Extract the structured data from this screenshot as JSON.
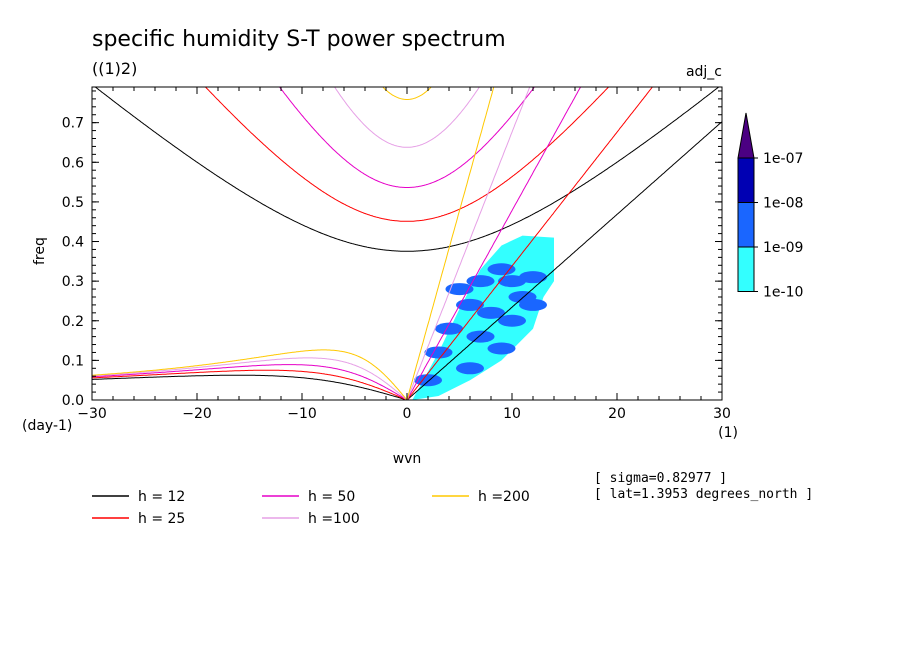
{
  "chart_data": {
    "type": "contour",
    "title": "specific humidity S-T power spectrum",
    "subtitle": "((1)2)",
    "top_right_label": "adj_c",
    "xlabel": "wvn",
    "ylabel": "freq",
    "x_unit": "(1)",
    "y_unit": "(day-1)",
    "xlim": [
      -30,
      30
    ],
    "ylim": [
      0,
      0.79
    ],
    "x_ticks": [
      -30,
      -20,
      -10,
      0,
      10,
      20,
      30
    ],
    "y_ticks": [
      0.0,
      0.1,
      0.2,
      0.3,
      0.4,
      0.5,
      0.6,
      0.7
    ],
    "colorbar": {
      "levels": [
        "1e-10",
        "1e-09",
        "1e-08",
        "1e-07"
      ],
      "colors": [
        "#33ffff",
        "#1a66ff",
        "#0000b3",
        "#4b0082"
      ]
    },
    "dispersion_curves": [
      {
        "name": "h = 12",
        "h": 12,
        "color": "#000000"
      },
      {
        "name": "h = 25",
        "h": 25,
        "color": "#ff0000"
      },
      {
        "name": "h = 50",
        "h": 50,
        "color": "#e600c8"
      },
      {
        "name": "h =100",
        "h": 100,
        "color": "#e6a0e6"
      },
      {
        "name": "h =200",
        "h": 200,
        "color": "#ffc800"
      }
    ],
    "spectral_region": {
      "polygon": [
        [
          0.5,
          0.0
        ],
        [
          3,
          0.12
        ],
        [
          5,
          0.23
        ],
        [
          7,
          0.33
        ],
        [
          9,
          0.39
        ],
        [
          11,
          0.415
        ],
        [
          14,
          0.41
        ],
        [
          14,
          0.3
        ],
        [
          13,
          0.26
        ],
        [
          12,
          0.18
        ],
        [
          9,
          0.1
        ],
        [
          6,
          0.05
        ],
        [
          3,
          0.01
        ]
      ],
      "blobs": [
        [
          5,
          0.28
        ],
        [
          6,
          0.24
        ],
        [
          7,
          0.3
        ],
        [
          8,
          0.22
        ],
        [
          10,
          0.2
        ],
        [
          11,
          0.26
        ],
        [
          12,
          0.31
        ],
        [
          9,
          0.33
        ],
        [
          4,
          0.18
        ],
        [
          7,
          0.16
        ],
        [
          10,
          0.3
        ],
        [
          12,
          0.24
        ],
        [
          3,
          0.12
        ],
        [
          6,
          0.08
        ],
        [
          9,
          0.13
        ],
        [
          2,
          0.05
        ]
      ]
    },
    "annotations": [
      "[ sigma=0.82977 ]",
      "[ lat=1.3953 degrees_north ]"
    ]
  }
}
